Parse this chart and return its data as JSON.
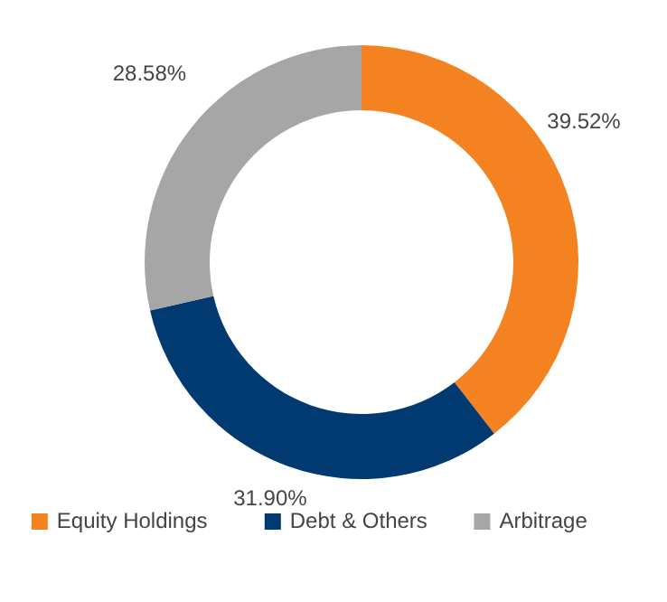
{
  "chart_data": {
    "type": "donut",
    "categories": [
      "Equity Holdings",
      "Debt & Others",
      "Arbitrage"
    ],
    "values": [
      39.52,
      31.9,
      28.58
    ],
    "colors": [
      "#f58220",
      "#003a70",
      "#a6a6a6"
    ],
    "value_labels": [
      "39.52%",
      "31.90%",
      "28.58%"
    ],
    "legend": "bottom"
  }
}
